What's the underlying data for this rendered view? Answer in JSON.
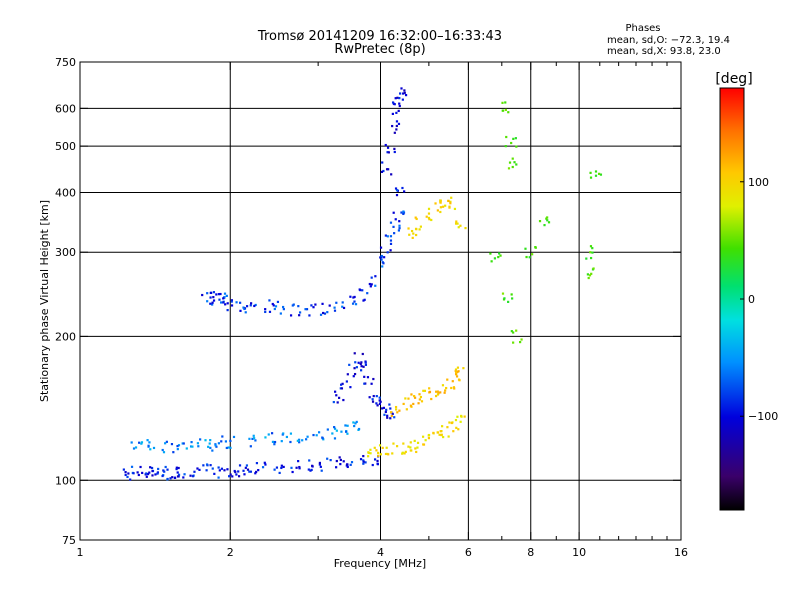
{
  "chart_data": {
    "type": "scatter",
    "title": "Tromsø 20141209 16:32:00–16:33:43",
    "subtitle": "RwPretec (8p)",
    "xlabel": "Frequency [MHz]",
    "ylabel": "Stationary phase Virtual Height [km]",
    "x_scale": "log",
    "y_scale": "log",
    "xlim": [
      1,
      16
    ],
    "ylim": [
      75,
      750
    ],
    "x_ticks": [
      1,
      2,
      4,
      6,
      8,
      10,
      16
    ],
    "x_tick_labels": [
      "1",
      "2",
      "4",
      "6",
      "8",
      "10",
      "16"
    ],
    "x_minor_ticks": [
      3,
      5,
      7,
      9,
      11,
      12,
      13,
      14,
      15
    ],
    "x_gridlines": [
      1,
      2,
      4,
      6,
      8,
      10
    ],
    "y_ticks": [
      75,
      100,
      200,
      300,
      400,
      500,
      600,
      750
    ],
    "y_tick_labels": [
      "75",
      "100",
      "200",
      "300",
      "400",
      "500",
      "600",
      "750"
    ],
    "y_gridlines": [
      100,
      200,
      300,
      400,
      500,
      600
    ],
    "grid": true,
    "stats": {
      "title": "Phases",
      "line_o": "mean, sd,O:  −72.3,  19.4",
      "line_x": "mean, sd,X:   93.8,  23.0"
    },
    "colorbar": {
      "label": "[deg]",
      "range": [
        -180,
        180
      ],
      "ticks": [
        100,
        0,
        -100
      ],
      "tick_labels": [
        "100",
        "0",
        "−100"
      ],
      "colormap": "rainbow"
    },
    "series": [
      {
        "name": "low trace O (blue)",
        "points": [
          [
            1.25,
            103
          ],
          [
            1.3,
            104
          ],
          [
            1.35,
            104
          ],
          [
            1.4,
            105
          ],
          [
            1.45,
            104
          ],
          [
            1.5,
            103
          ],
          [
            1.55,
            104
          ],
          [
            1.6,
            104
          ],
          [
            1.7,
            105
          ],
          [
            1.8,
            105
          ],
          [
            1.9,
            104
          ],
          [
            2.0,
            104
          ],
          [
            2.1,
            105
          ],
          [
            2.2,
            106
          ],
          [
            2.3,
            106
          ],
          [
            2.5,
            106
          ],
          [
            2.7,
            107
          ],
          [
            2.9,
            107
          ],
          [
            3.1,
            108
          ],
          [
            3.3,
            109
          ],
          [
            3.5,
            109
          ],
          [
            3.7,
            110
          ],
          [
            3.9,
            111
          ]
        ],
        "phase": -95
      },
      {
        "name": "low trace O upper (cyan)",
        "points": [
          [
            1.3,
            118
          ],
          [
            1.4,
            118
          ],
          [
            1.5,
            118
          ],
          [
            1.6,
            118
          ],
          [
            1.7,
            119
          ],
          [
            1.8,
            119
          ],
          [
            1.9,
            120
          ],
          [
            2.0,
            120
          ],
          [
            2.2,
            121
          ],
          [
            2.4,
            122
          ],
          [
            2.6,
            123
          ],
          [
            2.8,
            123
          ],
          [
            3.0,
            125
          ],
          [
            3.2,
            126
          ],
          [
            3.4,
            128
          ],
          [
            3.6,
            130
          ]
        ],
        "phase": -70
      },
      {
        "name": "F-layer trace (blue)",
        "points": [
          [
            1.8,
            240
          ],
          [
            1.85,
            245
          ],
          [
            1.9,
            242
          ],
          [
            1.95,
            240
          ],
          [
            2.0,
            232
          ],
          [
            2.1,
            230
          ],
          [
            2.2,
            228
          ],
          [
            2.4,
            232
          ],
          [
            2.5,
            230
          ],
          [
            2.7,
            228
          ],
          [
            2.9,
            227
          ],
          [
            3.1,
            228
          ],
          [
            3.3,
            230
          ],
          [
            3.5,
            238
          ],
          [
            3.7,
            245
          ],
          [
            3.9,
            260
          ],
          [
            4.0,
            285
          ],
          [
            4.1,
            300
          ],
          [
            4.2,
            320
          ],
          [
            4.3,
            340
          ],
          [
            4.35,
            360
          ],
          [
            4.4,
            400
          ]
        ],
        "phase": -90
      },
      {
        "name": "E-layer cusp (blue)",
        "points": [
          [
            3.3,
            150
          ],
          [
            3.4,
            160
          ],
          [
            3.5,
            170
          ],
          [
            3.6,
            180
          ],
          [
            3.7,
            175
          ],
          [
            3.8,
            160
          ],
          [
            3.9,
            150
          ],
          [
            4.0,
            145
          ],
          [
            4.1,
            140
          ],
          [
            4.2,
            138
          ]
        ],
        "phase": -100
      },
      {
        "name": "X trace low (yellow)",
        "points": [
          [
            3.8,
            114
          ],
          [
            4.0,
            115
          ],
          [
            4.2,
            116
          ],
          [
            4.4,
            117
          ],
          [
            4.6,
            118
          ],
          [
            4.8,
            120
          ],
          [
            5.0,
            122
          ],
          [
            5.2,
            124
          ],
          [
            5.4,
            127
          ],
          [
            5.6,
            130
          ],
          [
            5.8,
            135
          ]
        ],
        "phase": 95
      },
      {
        "name": "X trace upper (yellow/orange)",
        "points": [
          [
            4.3,
            140
          ],
          [
            4.5,
            145
          ],
          [
            4.7,
            148
          ],
          [
            4.9,
            150
          ],
          [
            5.1,
            152
          ],
          [
            5.3,
            155
          ],
          [
            5.5,
            160
          ],
          [
            5.7,
            165
          ],
          [
            5.8,
            170
          ]
        ],
        "phase": 110
      },
      {
        "name": "X F-layer (yellow)",
        "points": [
          [
            4.6,
            330
          ],
          [
            4.8,
            345
          ],
          [
            5.0,
            360
          ],
          [
            5.2,
            375
          ],
          [
            5.4,
            385
          ],
          [
            5.6,
            380
          ],
          [
            5.8,
            340
          ]
        ],
        "phase": 100
      },
      {
        "name": "high tail (blue)",
        "points": [
          [
            4.1,
            450
          ],
          [
            4.2,
            500
          ],
          [
            4.25,
            550
          ],
          [
            4.3,
            600
          ],
          [
            4.35,
            620
          ],
          [
            4.4,
            650
          ]
        ],
        "phase": -105
      },
      {
        "name": "scattered",
        "points": [
          [
            6.8,
            290
          ],
          [
            7.2,
            240
          ],
          [
            7.5,
            200
          ],
          [
            8.0,
            300
          ],
          [
            8.5,
            350
          ],
          [
            10.5,
            300
          ],
          [
            10.6,
            270
          ],
          [
            10.8,
            430
          ],
          [
            7.1,
            600
          ],
          [
            7.3,
            510
          ],
          [
            7.4,
            460
          ]
        ],
        "phase": 40
      }
    ]
  }
}
